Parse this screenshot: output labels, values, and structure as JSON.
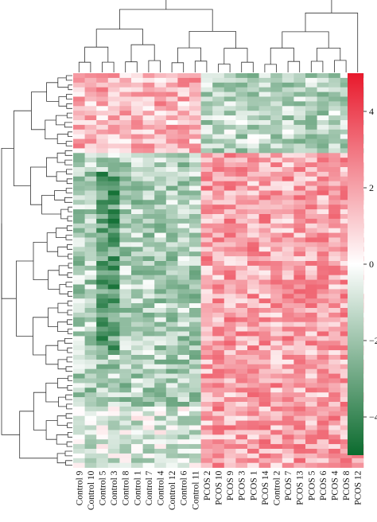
{
  "chart_data": {
    "type": "heatmap",
    "title": "",
    "xlabel": "",
    "ylabel": "",
    "column_labels": [
      "Control 9",
      "Control 10",
      "Control 5",
      "Control 3",
      "Control 8",
      "Control 1",
      "Control 7",
      "Control 4",
      "Control 12",
      "Control 6",
      "Control 11",
      "PCOS 2",
      "PCOS 10",
      "PCOS 9",
      "PCOS 3",
      "PCOS 1",
      "PCOS 14",
      "Control 2",
      "PCOS 7",
      "PCOS 13",
      "PCOS 5",
      "PCOS 6",
      "PCOS 4",
      "PCOS 8",
      "PCOS 12"
    ],
    "row_count": 84,
    "color_scale": {
      "min": -5,
      "max": 5,
      "ticks": [
        4,
        2,
        0,
        -2,
        -4
      ],
      "tick_labels": [
        "4",
        "2",
        "0",
        "−2",
        "−4"
      ],
      "colors": {
        "low": "#0b6b2e",
        "mid": "#ffffff",
        "high": "#e8192c"
      }
    },
    "dendrogram": {
      "rows": true,
      "columns": true
    },
    "grid": false,
    "legend": "right"
  }
}
